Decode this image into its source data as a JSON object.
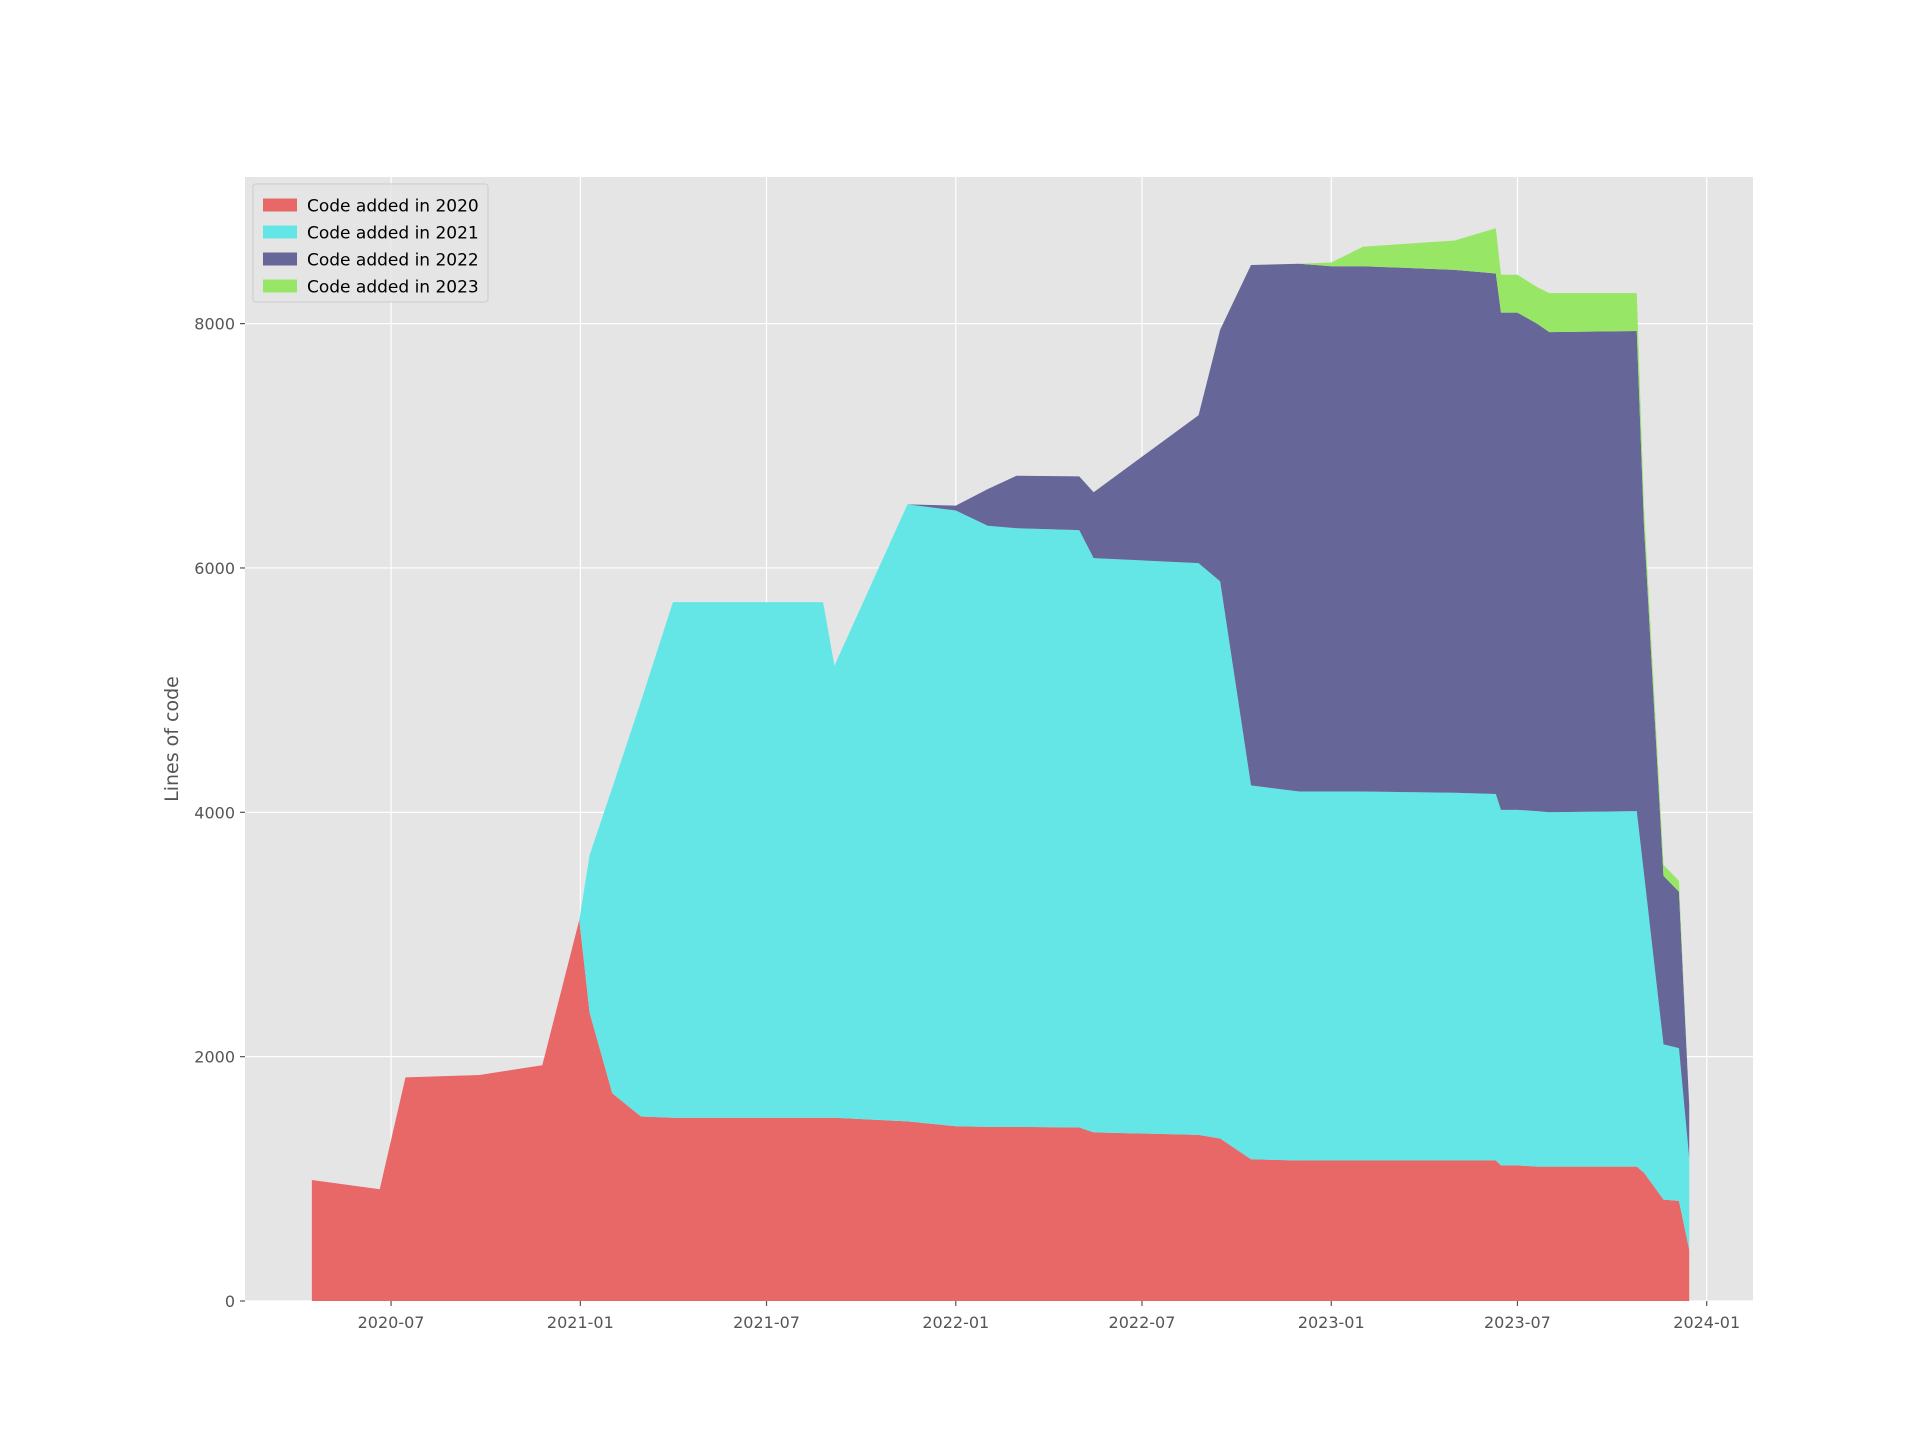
{
  "chart_data": {
    "type": "area",
    "stacked": true,
    "title": "",
    "xlabel": "",
    "ylabel": "Lines of code",
    "ylim": [
      0,
      9200
    ],
    "xlim": [
      "2020-02-10",
      "2024-02-15"
    ],
    "grid": true,
    "legend_position": "top-left",
    "y_ticks": [
      0,
      2000,
      4000,
      6000,
      8000
    ],
    "x_ticks": [
      {
        "date": "2020-07-01",
        "label": "2020-07"
      },
      {
        "date": "2021-01-01",
        "label": "2021-01"
      },
      {
        "date": "2021-07-01",
        "label": "2021-07"
      },
      {
        "date": "2022-01-01",
        "label": "2022-01"
      },
      {
        "date": "2022-07-01",
        "label": "2022-07"
      },
      {
        "date": "2023-01-01",
        "label": "2023-01"
      },
      {
        "date": "2023-07-01",
        "label": "2023-07"
      },
      {
        "date": "2024-01-01",
        "label": "2024-01"
      }
    ],
    "x": [
      "2020-04-15",
      "2020-06-20",
      "2020-07-15",
      "2020-09-25",
      "2020-11-25",
      "2020-12-31",
      "2021-01-10",
      "2021-02-01",
      "2021-03-01",
      "2021-04-01",
      "2021-06-01",
      "2021-08-25",
      "2021-09-05",
      "2021-11-15",
      "2022-01-01",
      "2022-02-01",
      "2022-03-01",
      "2022-05-01",
      "2022-05-15",
      "2022-08-25",
      "2022-09-15",
      "2022-10-15",
      "2022-12-01",
      "2023-01-01",
      "2023-02-01",
      "2023-05-01",
      "2023-06-10",
      "2023-06-15",
      "2023-07-01",
      "2023-07-20",
      "2023-08-01",
      "2023-10-25",
      "2023-11-01",
      "2023-11-20",
      "2023-12-05",
      "2023-12-15"
    ],
    "series": [
      {
        "name": "Code added in 2020",
        "color": "#e86767",
        "values": [
          990,
          915,
          1830,
          1850,
          1930,
          3120,
          2360,
          1700,
          1510,
          1500,
          1500,
          1500,
          1500,
          1470,
          1430,
          1425,
          1425,
          1420,
          1380,
          1360,
          1330,
          1160,
          1150,
          1150,
          1150,
          1150,
          1150,
          1110,
          1110,
          1100,
          1100,
          1100,
          1050,
          830,
          820,
          420
        ]
      },
      {
        "name": "Code added in 2021",
        "color": "#65e6e6",
        "values": [
          0,
          0,
          0,
          0,
          0,
          0,
          1290,
          2500,
          3400,
          4220,
          4220,
          4220,
          3700,
          5050,
          5040,
          4920,
          4900,
          4890,
          4700,
          4680,
          4560,
          3060,
          3020,
          3020,
          3020,
          3010,
          3000,
          2910,
          2910,
          2910,
          2900,
          2910,
          2450,
          1270,
          1250,
          750
        ]
      },
      {
        "name": "Code added in 2022",
        "color": "#666698",
        "values": [
          0,
          0,
          0,
          0,
          0,
          0,
          0,
          0,
          0,
          0,
          0,
          0,
          0,
          0,
          40,
          300,
          430,
          440,
          540,
          1210,
          2060,
          4260,
          4320,
          4300,
          4300,
          4280,
          4260,
          4070,
          4070,
          3990,
          3930,
          3930,
          2850,
          1380,
          1280,
          430
        ]
      },
      {
        "name": "Code added in 2023",
        "color": "#98e666",
        "values": [
          0,
          0,
          0,
          0,
          0,
          0,
          0,
          0,
          0,
          0,
          0,
          0,
          0,
          0,
          0,
          0,
          0,
          0,
          0,
          0,
          0,
          0,
          0,
          30,
          160,
          240,
          370,
          310,
          310,
          300,
          320,
          310,
          150,
          90,
          90,
          0
        ]
      }
    ]
  }
}
